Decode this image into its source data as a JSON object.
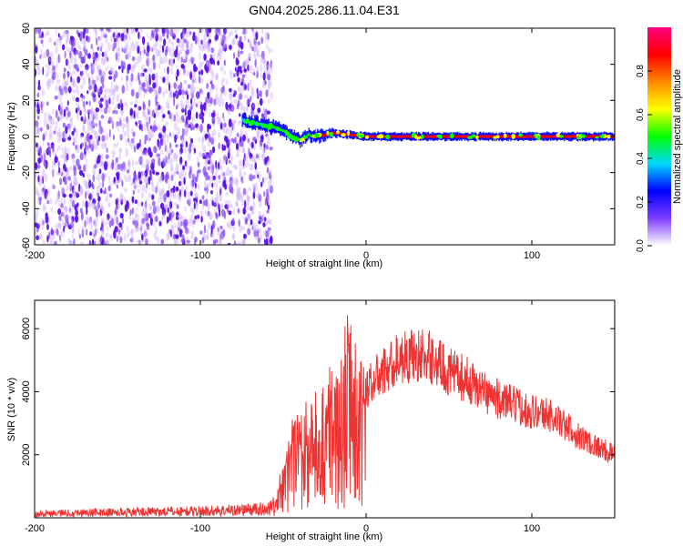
{
  "title": "GN04.2025.286.11.04.E31",
  "chart_data": [
    {
      "type": "heatmap",
      "xlabel": "Height of straight line (km)",
      "ylabel": "Frequency (Hz)",
      "xlim": [
        -200,
        150
      ],
      "ylim": [
        -60,
        60
      ],
      "x_ticks": [
        -200,
        -100,
        0,
        100
      ],
      "y_ticks": [
        -60,
        -40,
        -20,
        0,
        20,
        40,
        60
      ],
      "colorbar": {
        "label": "Normalized spectral amplitude",
        "range": [
          0,
          1
        ],
        "ticks": [
          0.0,
          0.2,
          0.4,
          0.6,
          0.8
        ],
        "colormap": [
          "#ffffff",
          "#7d3cff",
          "#0000ff",
          "#00d8ff",
          "#00ff00",
          "#ffff00",
          "#ff8800",
          "#ff0000",
          "#ff0080"
        ]
      },
      "noise_region": {
        "x_range": [
          -200,
          -57
        ],
        "y_range": [
          -60,
          60
        ],
        "amplitude": 0.2
      },
      "signal_line": {
        "x": [
          -75,
          -65,
          -55,
          -50,
          -45,
          -40,
          -35,
          -30,
          -20,
          -10,
          0,
          20,
          50,
          100,
          150
        ],
        "y": [
          9,
          7,
          5,
          3,
          0,
          -2,
          1,
          0,
          2,
          1,
          0,
          0,
          0,
          0,
          0
        ],
        "peak_amplitude": 0.95
      }
    },
    {
      "type": "line",
      "xlabel": "Height of straight line (km)",
      "ylabel": "SNR (10 * v/v)",
      "xlim": [
        -200,
        150
      ],
      "ylim": [
        0,
        6900
      ],
      "x_ticks": [
        -200,
        -100,
        0,
        100
      ],
      "y_ticks": [
        2000,
        4000,
        6000
      ],
      "color": "#ee3333",
      "envelope": {
        "x": [
          -200,
          -100,
          -60,
          -55,
          -45,
          -35,
          -25,
          -15,
          -10,
          -5,
          0,
          10,
          20,
          30,
          40,
          50,
          60,
          70,
          80,
          90,
          100,
          110,
          120,
          130,
          140,
          150
        ],
        "y": [
          200,
          300,
          400,
          700,
          3000,
          3600,
          4300,
          5300,
          6400,
          5400,
          4400,
          4900,
          5400,
          5500,
          5400,
          4900,
          4700,
          4300,
          4000,
          3800,
          3600,
          3500,
          3100,
          2700,
          2400,
          2100
        ]
      }
    }
  ]
}
